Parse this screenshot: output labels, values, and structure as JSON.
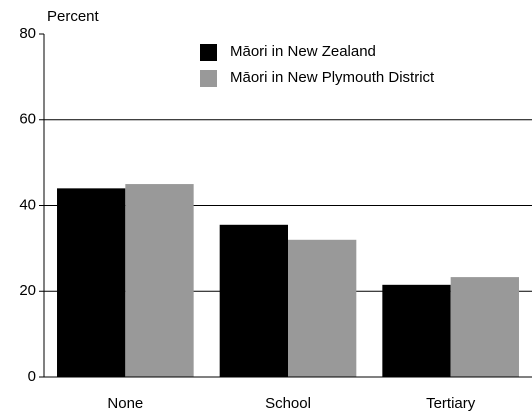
{
  "chart_data": {
    "type": "bar",
    "y_label": "Percent",
    "categories": [
      "None",
      "School",
      "Tertiary"
    ],
    "series": [
      {
        "name": "Māori in New Zealand",
        "color": "#000000",
        "values": [
          44,
          35.5,
          21.5
        ]
      },
      {
        "name": "Māori in New Plymouth District",
        "color": "#999999",
        "values": [
          45,
          32,
          23.3
        ]
      }
    ],
    "ylim": [
      0,
      80
    ],
    "yticks": [
      0,
      20,
      40,
      60,
      80
    ],
    "grid": true,
    "legend": "top"
  }
}
